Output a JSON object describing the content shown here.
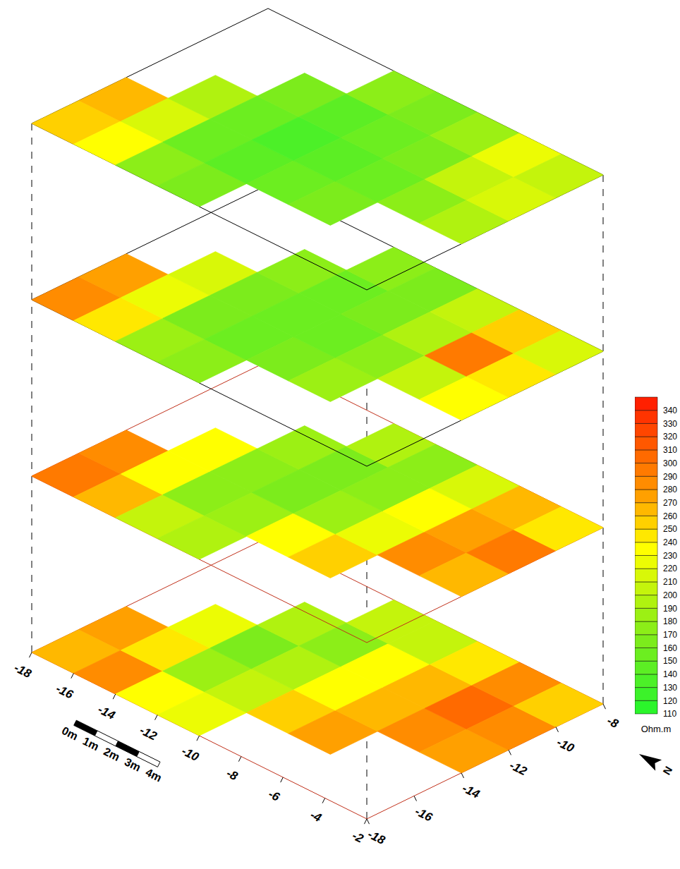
{
  "chart_data": {
    "type": "heatmap",
    "xlim": [
      -18,
      -2
    ],
    "xticks": [
      -18,
      -16,
      -14,
      -12,
      -10,
      -8,
      -6,
      -4,
      -2
    ],
    "ylim": [
      -18,
      -8
    ],
    "yticks": [
      -18,
      -16,
      -14,
      -12,
      -10,
      -8
    ],
    "layers": [
      {
        "cells": [
          [
            250,
            230,
            170,
            160,
            null,
            null,
            null,
            null
          ],
          [
            260,
            210,
            150,
            140,
            150,
            165,
            null,
            null
          ],
          [
            null,
            190,
            150,
            135,
            145,
            150,
            170,
            190
          ],
          [
            null,
            null,
            160,
            145,
            150,
            160,
            200,
            215
          ],
          [
            null,
            null,
            null,
            170,
            160,
            180,
            225,
            200
          ]
        ]
      },
      {
        "cells": [
          [
            280,
            240,
            180,
            170,
            null,
            null,
            null,
            null
          ],
          [
            270,
            220,
            160,
            150,
            165,
            185,
            null,
            null
          ],
          [
            null,
            210,
            160,
            150,
            155,
            170,
            200,
            230
          ],
          [
            null,
            null,
            170,
            150,
            160,
            190,
            290,
            240
          ],
          [
            null,
            null,
            null,
            175,
            160,
            200,
            250,
            215
          ]
        ]
      },
      {
        "cells": [
          [
            290,
            260,
            200,
            190,
            null,
            null,
            null,
            null
          ],
          [
            280,
            230,
            170,
            180,
            230,
            250,
            null,
            null
          ],
          [
            null,
            230,
            170,
            160,
            180,
            220,
            280,
            260
          ],
          [
            null,
            null,
            180,
            160,
            175,
            230,
            270,
            290
          ],
          [
            null,
            null,
            null,
            190,
            170,
            210,
            260,
            240
          ]
        ]
      },
      {
        "cells": [
          [
            260,
            280,
            230,
            220,
            null,
            null,
            null,
            null
          ],
          [
            270,
            240,
            180,
            200,
            250,
            270,
            null,
            null
          ],
          [
            null,
            220,
            160,
            190,
            230,
            260,
            280,
            270
          ],
          [
            null,
            null,
            190,
            170,
            230,
            260,
            300,
            280
          ],
          [
            null,
            null,
            null,
            200,
            200,
            240,
            280,
            250
          ]
        ]
      }
    ],
    "colorbar": {
      "range": [
        110,
        350
      ],
      "ticks": [
        110,
        120,
        130,
        140,
        150,
        160,
        170,
        180,
        190,
        200,
        210,
        220,
        230,
        240,
        250,
        260,
        270,
        280,
        290,
        300,
        310,
        320,
        330,
        340
      ],
      "colors": [
        "#2bf52b",
        "#3cf22a",
        "#4cf028",
        "#5cee24",
        "#6cee20",
        "#7cec1c",
        "#8cee18",
        "#9cf014",
        "#b0f210",
        "#c4f40c",
        "#d8f808",
        "#ecfc04",
        "#ffff00",
        "#ffe800",
        "#ffd000",
        "#ffb800",
        "#ffa000",
        "#ff8c00",
        "#ff7a00",
        "#ff6a00",
        "#ff5800",
        "#ff4600",
        "#ff3400",
        "#ff2000"
      ],
      "label": "Ohm.m"
    },
    "scale_bar": {
      "ticks": [
        {
          "value": 0,
          "label": "0m"
        },
        {
          "value": 1,
          "label": "1m"
        },
        {
          "value": 2,
          "label": "2m"
        },
        {
          "value": 3,
          "label": "3m"
        },
        {
          "value": 4,
          "label": "4m"
        }
      ]
    },
    "north_label": "N"
  }
}
